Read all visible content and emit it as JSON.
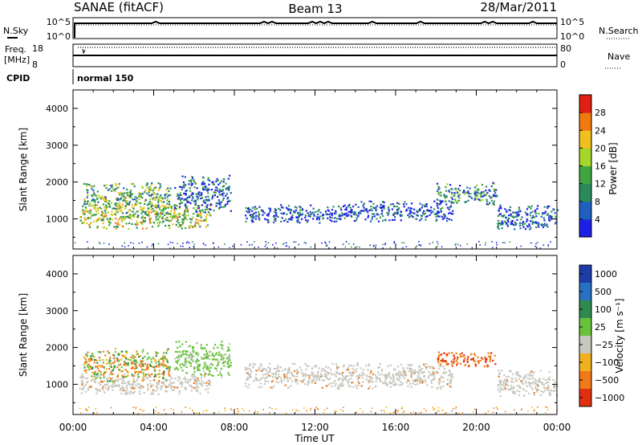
{
  "header": {
    "station": "SANAE (fitACF)",
    "beam": "Beam 13",
    "date": "28/Mar/2011"
  },
  "params": {
    "nsky_label": "N.Sky",
    "nsearch_label": "N.Search",
    "nsky_ticks": [
      "10^5",
      "10^0"
    ],
    "nsearch_ticks": [
      "10^5",
      "10^0"
    ],
    "freq_label": "Freq.",
    "freq_unit": "[MHz]",
    "freq_ticks": [
      "18",
      "8"
    ],
    "nave_label": "Nave",
    "nave_ticks": [
      "80",
      "0"
    ],
    "cpid_label": "CPID",
    "cpid_value": "normal 150"
  },
  "colors": {
    "power_scale": [
      "#1e1ee6",
      "#1f5fbf",
      "#2b8a5a",
      "#3fa63f",
      "#a6d62a",
      "#f0c020",
      "#f07a10",
      "#e02010"
    ],
    "velocity_scale": [
      "#1e3ca8",
      "#2a70c0",
      "#2f8a50",
      "#68c23c",
      "#c8c8c0",
      "#f0b020",
      "#f07a18",
      "#e03010"
    ]
  },
  "chart_data": [
    {
      "type": "heatmap",
      "panel": "power",
      "xlabel": "",
      "ylabel": "Slant Range [km]",
      "x_ticks": [
        "00:00",
        "04:00",
        "08:00",
        "12:00",
        "16:00",
        "20:00",
        "00:00"
      ],
      "xlim_hours": [
        0,
        24
      ],
      "ylim": [
        180,
        4500
      ],
      "y_ticks": [
        1000,
        2000,
        3000,
        4000
      ],
      "colorbar": {
        "label": "Power [dB]",
        "ticks": [
          4,
          8,
          12,
          16,
          20,
          24,
          28
        ],
        "range": [
          0,
          32
        ]
      },
      "regions": [
        {
          "hours": [
            0.3,
            6.8
          ],
          "range_km": [
            750,
            1400
          ],
          "level": 0.55
        },
        {
          "hours": [
            0.5,
            4.8
          ],
          "range_km": [
            1100,
            2000
          ],
          "level": 0.45
        },
        {
          "hours": [
            5.0,
            7.8
          ],
          "range_km": [
            1200,
            2200
          ],
          "level": 0.2
        },
        {
          "hours": [
            8.5,
            13.5
          ],
          "range_km": [
            900,
            1400
          ],
          "level": 0.12
        },
        {
          "hours": [
            13.5,
            18.8
          ],
          "range_km": [
            950,
            1500
          ],
          "level": 0.12
        },
        {
          "hours": [
            18.0,
            21.0
          ],
          "range_km": [
            1400,
            2000
          ],
          "level": 0.3
        },
        {
          "hours": [
            21.0,
            24.0
          ],
          "range_km": [
            700,
            1400
          ],
          "level": 0.2
        }
      ]
    },
    {
      "type": "heatmap",
      "panel": "velocity",
      "xlabel": "Time UT",
      "ylabel": "Slant Range [km]",
      "x_ticks": [
        "00:00",
        "04:00",
        "08:00",
        "12:00",
        "16:00",
        "20:00",
        "00:00"
      ],
      "xlim_hours": [
        0,
        24
      ],
      "ylim": [
        180,
        4500
      ],
      "y_ticks": [
        1000,
        2000,
        3000,
        4000
      ],
      "colorbar": {
        "label": "Velocity [m s⁻¹]",
        "ticks": [
          "1000",
          "500",
          "100",
          "25",
          "−25",
          "−100",
          "−500",
          "−1000"
        ]
      },
      "regions": [
        {
          "hours": [
            0.3,
            6.8
          ],
          "range_km": [
            750,
            1300
          ],
          "category": "ground"
        },
        {
          "hours": [
            0.5,
            4.8
          ],
          "range_km": [
            1100,
            2000
          ],
          "category": "mixed"
        },
        {
          "hours": [
            5.0,
            7.8
          ],
          "range_km": [
            1200,
            2200
          ],
          "category": "green"
        },
        {
          "hours": [
            8.5,
            18.8
          ],
          "range_km": [
            900,
            1600
          ],
          "category": "ground"
        },
        {
          "hours": [
            18.0,
            21.0
          ],
          "range_km": [
            1500,
            1900
          ],
          "category": "orange"
        },
        {
          "hours": [
            21.0,
            24.0
          ],
          "range_km": [
            700,
            1400
          ],
          "category": "ground"
        }
      ]
    }
  ]
}
